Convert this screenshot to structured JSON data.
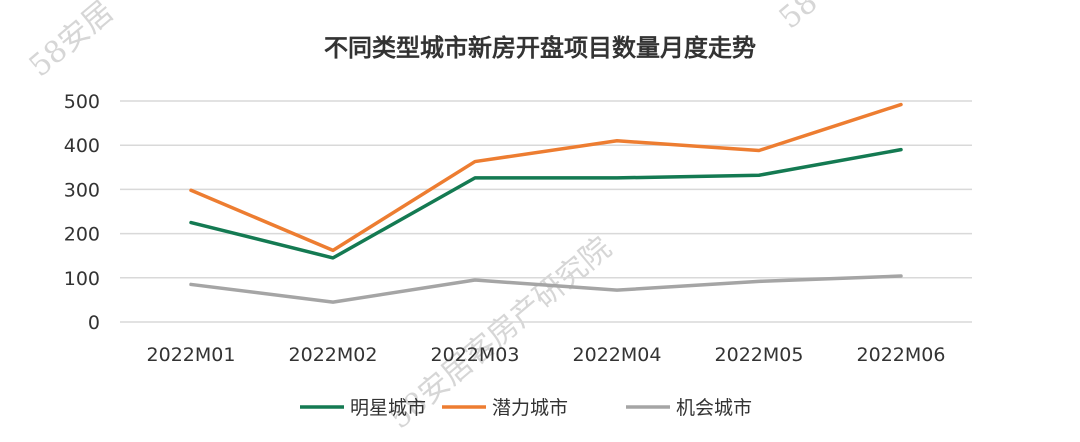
{
  "chart_data": {
    "type": "line",
    "title": "不同类型城市新房开盘项目数量月度走势",
    "xlabel": "",
    "ylabel": "",
    "categories": [
      "2022M01",
      "2022M02",
      "2022M03",
      "2022M04",
      "2022M05",
      "2022M06"
    ],
    "ylim": [
      0,
      500
    ],
    "yticks": [
      0,
      100,
      200,
      300,
      400,
      500
    ],
    "grid": true,
    "legend_position": "bottom",
    "series": [
      {
        "name": "明星城市",
        "color": "#147a52",
        "values": [
          225,
          145,
          326,
          326,
          332,
          390
        ]
      },
      {
        "name": "潜力城市",
        "color": "#ed7d31",
        "values": [
          298,
          162,
          363,
          410,
          388,
          492
        ]
      },
      {
        "name": "机会城市",
        "color": "#a5a5a5",
        "values": [
          85,
          45,
          95,
          72,
          92,
          104
        ]
      }
    ]
  },
  "watermark": {
    "text_main": "58安居客房产研究院",
    "text_corner_left": "58安居",
    "text_corner_right": "58"
  }
}
